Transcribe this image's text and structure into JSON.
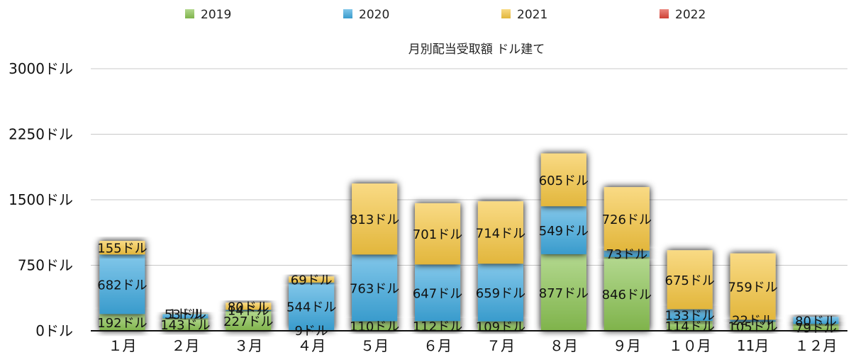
{
  "chart_data": {
    "type": "bar",
    "stacked": true,
    "title": "月別配当受取額 ドル建て",
    "legend_position": "top",
    "grid": true,
    "ylim": [
      0,
      3000
    ],
    "y_ticks": [
      0,
      750,
      1500,
      2250,
      3000
    ],
    "y_tick_labels": [
      "0ドル",
      "750ドル",
      "1500ドル",
      "2250ドル",
      "3000ドル"
    ],
    "categories": [
      "１月",
      "２月",
      "３月",
      "４月",
      "５月",
      "６月",
      "７月",
      "８月",
      "９月",
      "１０月",
      "11月",
      "１２月"
    ],
    "series": [
      {
        "name": "2019",
        "color": "#8ac352",
        "values": [
          192,
          143,
          227,
          9,
          110,
          112,
          109,
          877,
          846,
          114,
          105,
          79
        ],
        "labels": [
          "192ドル",
          "143ドル",
          "227ドル",
          "9ドル",
          "110ドル",
          "112ドル",
          "109ドル",
          "877ドル",
          "846ドル",
          "114ドル",
          "105ドル",
          "79ドル"
        ]
      },
      {
        "name": "2020",
        "color": "#3ea9de",
        "values": [
          682,
          53,
          14,
          544,
          763,
          647,
          659,
          549,
          73,
          133,
          22,
          80
        ],
        "labels": [
          "682ドル",
          "53ドル",
          "14ドル",
          "544ドル",
          "763ドル",
          "647ドル",
          "659ドル",
          "549ドル",
          "73ドル",
          "133ドル",
          "22ドル",
          "80ドル"
        ]
      },
      {
        "name": "2021",
        "color": "#f6c641",
        "values": [
          155,
          1,
          80,
          69,
          813,
          701,
          714,
          605,
          726,
          675,
          759,
          0
        ],
        "labels": [
          "155ドル",
          "1ドル",
          "80ドル",
          "69ドル",
          "813ドル",
          "701ドル",
          "714ドル",
          "605ドル",
          "726ドル",
          "675ドル",
          "759ドル",
          ""
        ]
      },
      {
        "name": "2022",
        "color": "#e0463a",
        "values": [
          0,
          0,
          0,
          0,
          0,
          0,
          0,
          0,
          0,
          0,
          0,
          0
        ],
        "labels": [
          "",
          "",
          "",
          "",
          "",
          "",
          "",
          "",
          "",
          "",
          "",
          ""
        ]
      }
    ]
  }
}
